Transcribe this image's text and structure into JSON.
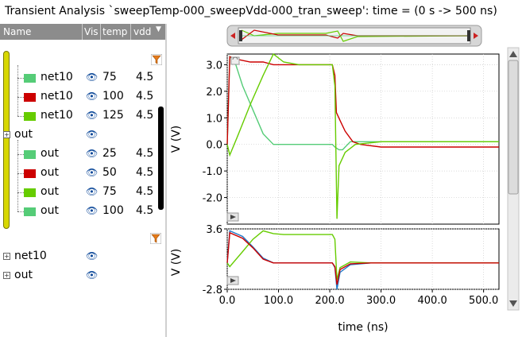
{
  "title": "Transient Analysis `sweepTemp-000_sweepVdd-000_tran_sweep': time = (0 s -> 500 ns)",
  "columns": {
    "name": "Name",
    "vis": "Vis",
    "temp": "temp",
    "vdd": "vdd"
  },
  "colors": {
    "green": "#55cc77",
    "red": "#cc0000",
    "lime": "#66cc00",
    "blue": "#1e78c8",
    "olive": "#d8d800"
  },
  "tree": {
    "group1_rows": [
      {
        "name": "net10",
        "temp": "75",
        "vdd": "4.5",
        "swatch": "green"
      },
      {
        "name": "net10",
        "temp": "100",
        "vdd": "4.5",
        "swatch": "red"
      },
      {
        "name": "net10",
        "temp": "125",
        "vdd": "4.5",
        "swatch": "lime"
      }
    ],
    "out_group": {
      "name": "out"
    },
    "group2_rows": [
      {
        "name": "out",
        "temp": "25",
        "vdd": "4.5",
        "swatch": "green"
      },
      {
        "name": "out",
        "temp": "50",
        "vdd": "4.5",
        "swatch": "red"
      },
      {
        "name": "out",
        "temp": "75",
        "vdd": "4.5",
        "swatch": "lime"
      },
      {
        "name": "out",
        "temp": "100",
        "vdd": "4.5",
        "swatch": "green"
      }
    ],
    "bottom_rows": [
      {
        "name": "net10"
      },
      {
        "name": "out"
      }
    ]
  },
  "chart_data": [
    {
      "type": "line",
      "ylabel": "V (V)",
      "xlabel": "",
      "ylim": [
        -3.0,
        3.4
      ],
      "yticks": [
        "3.0",
        "2.0",
        "1.0",
        "0.0",
        "-1.0",
        "-2.0"
      ],
      "xticks": [
        "0.0",
        "100.0",
        "200.0",
        "300.0",
        "400.0",
        "500.0"
      ],
      "xlim": [
        0,
        530
      ],
      "series": [
        {
          "color": "green",
          "x": [
            0,
            5,
            15,
            30,
            50,
            70,
            90,
            110,
            140,
            170,
            205,
            210,
            218,
            225,
            240,
            260,
            300,
            530
          ],
          "y": [
            0.0,
            3.3,
            3.1,
            2.2,
            1.3,
            0.4,
            0.0,
            0.0,
            0.0,
            0.0,
            0.0,
            -0.1,
            -0.2,
            -0.2,
            0.1,
            0.1,
            0.1,
            0.1
          ]
        },
        {
          "color": "red",
          "x": [
            0,
            5,
            20,
            45,
            70,
            90,
            110,
            140,
            170,
            205,
            210,
            213,
            220,
            230,
            245,
            260,
            300,
            530
          ],
          "y": [
            0.0,
            3.3,
            3.2,
            3.1,
            3.1,
            3.0,
            3.0,
            3.0,
            3.0,
            3.0,
            2.6,
            1.2,
            0.9,
            0.5,
            0.1,
            0.0,
            -0.1,
            -0.1
          ]
        },
        {
          "color": "lime",
          "x": [
            0,
            5,
            20,
            45,
            70,
            90,
            110,
            140,
            170,
            205,
            210,
            214,
            218,
            230,
            250,
            300,
            530
          ],
          "y": [
            0.0,
            -0.4,
            0.3,
            1.5,
            2.6,
            3.4,
            3.1,
            3.0,
            3.0,
            3.0,
            2.2,
            -2.8,
            -0.8,
            -0.3,
            0.0,
            0.1,
            0.1
          ]
        }
      ]
    },
    {
      "type": "line",
      "ylabel": "V (V)",
      "xlabel": "time (ns)",
      "ylim": [
        -2.8,
        3.6
      ],
      "yticks": [
        "3.6",
        "-2.8"
      ],
      "xticks": [
        "0.0",
        "100.0",
        "200.0",
        "300.0",
        "400.0",
        "500.0"
      ],
      "xlim": [
        0,
        530
      ],
      "series": [
        {
          "color": "blue",
          "x": [
            0,
            5,
            30,
            50,
            70,
            90,
            110,
            140,
            170,
            205,
            210,
            214,
            220,
            240,
            280,
            530
          ],
          "y": [
            0.0,
            3.4,
            2.8,
            1.7,
            0.5,
            0.0,
            0.0,
            0.0,
            0.0,
            0.0,
            -0.5,
            -2.8,
            -1.0,
            -0.2,
            0.0,
            0.0
          ]
        },
        {
          "color": "lime",
          "x": [
            0,
            5,
            30,
            50,
            70,
            90,
            110,
            140,
            170,
            205,
            210,
            214,
            220,
            240,
            280,
            530
          ],
          "y": [
            0.0,
            -0.4,
            1.2,
            2.5,
            3.4,
            3.1,
            3.0,
            3.0,
            3.0,
            3.0,
            2.5,
            -1.8,
            -0.5,
            0.1,
            0.0,
            0.0
          ]
        },
        {
          "color": "red",
          "x": [
            0,
            5,
            30,
            50,
            70,
            90,
            110,
            140,
            170,
            205,
            210,
            214,
            220,
            240,
            280,
            530
          ],
          "y": [
            0.0,
            3.2,
            2.6,
            1.6,
            0.4,
            0.0,
            0.0,
            0.0,
            0.0,
            0.0,
            -0.4,
            -2.3,
            -0.7,
            -0.1,
            0.0,
            0.0
          ]
        }
      ]
    }
  ]
}
